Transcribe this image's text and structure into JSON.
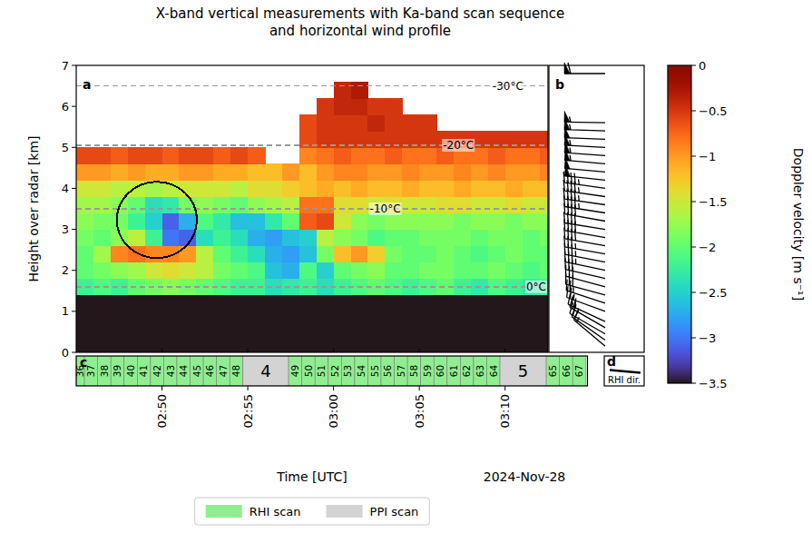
{
  "chart_data": {
    "type": "heatmap",
    "title": "X-band vertical measurements with Ka-band scan sequence\nand horizontal wind profile",
    "x_label": "Time [UTC]",
    "y_label": "Height over radar [km]",
    "date_label": "2024-Nov-28",
    "panel_labels": [
      "a",
      "b",
      "c",
      "d"
    ],
    "grid": false,
    "legend": "bottom",
    "xlim": [
      165,
      192.5
    ],
    "xticks": [
      {
        "value": 170,
        "label": "02:50"
      },
      {
        "value": 175,
        "label": "02:55"
      },
      {
        "value": 180,
        "label": "03:00"
      },
      {
        "value": 185,
        "label": "03:05"
      },
      {
        "value": 190,
        "label": "03:10"
      }
    ],
    "ylim": [
      0,
      7
    ],
    "yticks": [
      0,
      1,
      2,
      3,
      4,
      5,
      6,
      7
    ],
    "x_edges": [
      165,
      166,
      167,
      168,
      169,
      170,
      171,
      172,
      173,
      174,
      175,
      176,
      177,
      178,
      179,
      180,
      181,
      182,
      183,
      184,
      185,
      186,
      187,
      188,
      189,
      190,
      191,
      192,
      193
    ],
    "y_edges": [
      0,
      1.4,
      1.8,
      2.2,
      2.6,
      3.0,
      3.4,
      3.8,
      4.2,
      4.6,
      5.0,
      5.4,
      5.8,
      6.2,
      6.6
    ],
    "cells": [
      [
        -3.5,
        -3.5,
        -3.5,
        -3.5,
        -3.5,
        -3.5,
        -3.5,
        -3.5,
        -3.5,
        -3.5,
        -3.5,
        -3.5,
        -3.5,
        -3.5,
        -3.5,
        -3.5,
        -3.5,
        -3.5,
        -3.5,
        -3.5,
        -3.5,
        -3.5,
        -3.5,
        -3.5,
        -3.5,
        -3.5,
        -3.5,
        -3.5
      ],
      [
        -2.2,
        -2.1,
        -2.2,
        -2.0,
        -1.9,
        -1.8,
        -1.9,
        -2.0,
        -2.1,
        -2.2,
        -2.2,
        -2.4,
        -2.3,
        -2.2,
        -2.4,
        -2.2,
        -2.1,
        -2.0,
        -2.1,
        -2.2,
        -2.1,
        -2.0,
        -2.2,
        -2.3,
        -2.1,
        -2.2,
        -2.3,
        -2.2
      ],
      [
        -2.0,
        -1.9,
        -1.8,
        -1.7,
        -1.5,
        -1.4,
        -1.5,
        -1.6,
        -1.9,
        -2.0,
        -2.1,
        -2.6,
        -2.7,
        -2.1,
        -2.5,
        -2.0,
        -1.9,
        -1.8,
        -2.0,
        -2.0,
        -1.9,
        -1.9,
        -2.0,
        -2.0,
        -1.9,
        -2.0,
        -2.1,
        -2.0
      ],
      [
        -2.0,
        -1.7,
        -0.9,
        -0.8,
        -0.9,
        -0.9,
        -1.0,
        -1.6,
        -2.0,
        -2.2,
        -2.4,
        -2.7,
        -2.8,
        -2.6,
        -1.9,
        -1.2,
        -1.0,
        -1.3,
        -1.9,
        -2.0,
        -2.0,
        -1.9,
        -2.0,
        -2.1,
        -2.0,
        -1.9,
        -2.0,
        -2.0
      ],
      [
        -1.9,
        -2.0,
        -1.8,
        -1.6,
        -2.2,
        -3.0,
        -3.1,
        -2.4,
        -2.2,
        -2.4,
        -2.7,
        -2.8,
        -2.6,
        -2.5,
        -1.6,
        -1.8,
        -1.9,
        -2.1,
        -2.0,
        -2.0,
        -1.9,
        -1.9,
        -1.9,
        -2.0,
        -1.9,
        -1.9,
        -2.0,
        -1.9
      ],
      [
        -1.8,
        -1.9,
        -1.9,
        -2.2,
        -2.5,
        -3.1,
        -2.7,
        -2.1,
        -2.3,
        -2.6,
        -2.6,
        -2.3,
        -2.0,
        -0.7,
        -0.6,
        -1.5,
        -1.8,
        -1.9,
        -1.8,
        -1.8,
        -1.8,
        -1.8,
        -1.9,
        -1.8,
        -1.8,
        -1.9,
        -1.8,
        -1.8
      ],
      [
        -1.7,
        -1.7,
        -1.8,
        -2.0,
        -2.4,
        -2.3,
        -1.9,
        -1.8,
        -1.9,
        -2.0,
        -1.8,
        -1.7,
        -1.6,
        -0.8,
        -0.8,
        -1.4,
        -1.4,
        -1.5,
        -1.4,
        -1.5,
        -1.5,
        -1.4,
        -1.4,
        -1.5,
        -1.5,
        -1.4,
        -1.5,
        -1.5
      ],
      [
        -1.5,
        -1.5,
        -1.6,
        -1.6,
        -1.7,
        -1.6,
        -1.5,
        -1.5,
        -1.5,
        -1.6,
        -1.4,
        -1.4,
        -1.3,
        -1.2,
        -1.1,
        -1.2,
        -1.1,
        -1.2,
        -1.2,
        -1.1,
        -1.2,
        -1.2,
        -1.1,
        -1.2,
        -1.2,
        -1.1,
        -1.2,
        -1.2
      ],
      [
        -1.0,
        -1.0,
        -1.1,
        -1.0,
        -1.1,
        -1.1,
        -1.0,
        -1.0,
        -1.1,
        -1.1,
        -1.2,
        -1.2,
        -1.0,
        -1.2,
        -1.0,
        -0.9,
        -0.9,
        -1.0,
        -1.0,
        -0.9,
        -1.0,
        -1.0,
        -0.9,
        -1.0,
        -0.9,
        -1.0,
        -1.0,
        -0.9
      ],
      [
        -0.6,
        -0.6,
        -0.7,
        -0.6,
        -0.6,
        -0.7,
        -0.6,
        -0.6,
        -0.7,
        -0.6,
        -0.7,
        null,
        null,
        -0.9,
        -0.8,
        -0.7,
        -0.8,
        -0.8,
        -0.7,
        -0.8,
        -0.8,
        -0.7,
        -0.8,
        -0.8,
        -0.7,
        -0.8,
        -0.8,
        -0.7
      ],
      [
        null,
        null,
        null,
        null,
        null,
        null,
        null,
        null,
        null,
        null,
        null,
        null,
        null,
        -0.6,
        -0.5,
        -0.5,
        -0.5,
        -0.5,
        -0.5,
        -0.5,
        -0.5,
        -0.5,
        -0.5,
        -0.5,
        -0.5,
        -0.5,
        -0.5,
        -0.5
      ],
      [
        null,
        null,
        null,
        null,
        null,
        null,
        null,
        null,
        null,
        null,
        null,
        null,
        null,
        -0.6,
        -0.5,
        -0.5,
        -0.5,
        -0.4,
        -0.5,
        -0.5,
        -0.5,
        null,
        null,
        null,
        null,
        null,
        null,
        null
      ],
      [
        null,
        null,
        null,
        null,
        null,
        null,
        null,
        null,
        null,
        null,
        null,
        null,
        null,
        null,
        -0.5,
        -0.4,
        -0.4,
        -0.5,
        -0.5,
        null,
        null,
        null,
        null,
        null,
        null,
        null,
        null,
        null
      ],
      [
        null,
        null,
        null,
        null,
        null,
        null,
        null,
        null,
        null,
        null,
        null,
        null,
        null,
        null,
        null,
        -0.4,
        -0.3,
        null,
        null,
        null,
        null,
        null,
        null,
        null,
        null,
        null,
        null,
        null
      ]
    ],
    "colorbar": {
      "label": "Doppler velocity [m s⁻¹]",
      "range": [
        -3.5,
        0
      ],
      "ticks": [
        0,
        {
          "value": -0.5,
          "label": "−0.5"
        },
        {
          "value": -1,
          "label": "−1"
        },
        {
          "value": -1.5,
          "label": "−1.5"
        },
        {
          "value": -2,
          "label": "−2"
        },
        {
          "value": -2.5,
          "label": "−2.5"
        },
        {
          "value": -3,
          "label": "−3"
        },
        {
          "value": -3.5,
          "label": "−3.5"
        }
      ]
    },
    "isotherms": [
      {
        "value": 6.5,
        "label": "-30°C"
      },
      {
        "value": 5.05,
        "label": "-20°C"
      },
      {
        "value": 3.5,
        "label": "-10°C"
      },
      {
        "value": 1.6,
        "label": "0°C"
      }
    ],
    "circle": {
      "x": 169.7,
      "y": 3.23,
      "rx": 2.33,
      "ry": 0.93
    },
    "wind_profile": {
      "heights": [
        0.15,
        0.3,
        0.45,
        0.6,
        0.75,
        1.0,
        1.2,
        1.4,
        1.6,
        1.8,
        2.0,
        2.2,
        2.4,
        2.6,
        2.8,
        3.0,
        3.2,
        3.4,
        3.6,
        3.8,
        4.0,
        4.2,
        4.4,
        4.6,
        4.8,
        5.0,
        5.2,
        5.4,
        5.6,
        6.8
      ],
      "speeds": [
        15,
        20,
        20,
        20,
        25,
        25,
        25,
        30,
        30,
        30,
        35,
        35,
        35,
        40,
        40,
        40,
        40,
        45,
        45,
        45,
        45,
        50,
        50,
        55,
        55,
        55,
        50,
        55,
        55,
        60
      ],
      "directions": [
        310,
        305,
        300,
        300,
        295,
        290,
        288,
        285,
        285,
        283,
        282,
        281,
        280,
        280,
        280,
        279,
        280,
        279,
        278,
        278,
        278,
        276,
        275,
        275,
        274,
        273,
        272,
        272,
        271,
        270
      ]
    },
    "rhi_direction": 95,
    "rhi_label": "RHI dir.",
    "scan_xlim": [
      165,
      194.8
    ],
    "scan_types": [
      {
        "name": "RHI scan",
        "color": "#90ee90"
      },
      {
        "name": "PPI scan",
        "color": "#d3d3d3"
      }
    ],
    "scans": [
      {
        "label": "36",
        "kind": "RHI scan",
        "start": 165,
        "end": 165.48
      },
      {
        "label": "37",
        "kind": "RHI scan",
        "start": 165.48,
        "end": 166.25
      },
      {
        "label": "38",
        "kind": "RHI scan",
        "start": 166.25,
        "end": 167.02
      },
      {
        "label": "39",
        "kind": "RHI scan",
        "start": 167.02,
        "end": 167.79
      },
      {
        "label": "40",
        "kind": "RHI scan",
        "start": 167.79,
        "end": 168.56
      },
      {
        "label": "41",
        "kind": "RHI scan",
        "start": 168.56,
        "end": 169.33
      },
      {
        "label": "42",
        "kind": "RHI scan",
        "start": 169.33,
        "end": 170.1
      },
      {
        "label": "43",
        "kind": "RHI scan",
        "start": 170.1,
        "end": 170.87
      },
      {
        "label": "44",
        "kind": "RHI scan",
        "start": 170.87,
        "end": 171.64
      },
      {
        "label": "45",
        "kind": "RHI scan",
        "start": 171.64,
        "end": 172.41
      },
      {
        "label": "46",
        "kind": "RHI scan",
        "start": 172.41,
        "end": 173.18
      },
      {
        "label": "47",
        "kind": "RHI scan",
        "start": 173.18,
        "end": 173.95
      },
      {
        "label": "48",
        "kind": "RHI scan",
        "start": 173.95,
        "end": 174.72
      },
      {
        "label": "4",
        "kind": "PPI scan",
        "start": 174.72,
        "end": 177.38
      },
      {
        "label": "49",
        "kind": "RHI scan",
        "start": 177.38,
        "end": 178.15
      },
      {
        "label": "50",
        "kind": "RHI scan",
        "start": 178.15,
        "end": 178.92
      },
      {
        "label": "51",
        "kind": "RHI scan",
        "start": 178.92,
        "end": 179.69
      },
      {
        "label": "52",
        "kind": "RHI scan",
        "start": 179.69,
        "end": 180.46
      },
      {
        "label": "53",
        "kind": "RHI scan",
        "start": 180.46,
        "end": 181.23
      },
      {
        "label": "54",
        "kind": "RHI scan",
        "start": 181.23,
        "end": 182.0
      },
      {
        "label": "55",
        "kind": "RHI scan",
        "start": 182.0,
        "end": 182.77
      },
      {
        "label": "56",
        "kind": "RHI scan",
        "start": 182.77,
        "end": 183.54
      },
      {
        "label": "57",
        "kind": "RHI scan",
        "start": 183.54,
        "end": 184.31
      },
      {
        "label": "58",
        "kind": "RHI scan",
        "start": 184.31,
        "end": 185.08
      },
      {
        "label": "59",
        "kind": "RHI scan",
        "start": 185.08,
        "end": 185.85
      },
      {
        "label": "60",
        "kind": "RHI scan",
        "start": 185.85,
        "end": 186.62
      },
      {
        "label": "61",
        "kind": "RHI scan",
        "start": 186.62,
        "end": 187.39
      },
      {
        "label": "62",
        "kind": "RHI scan",
        "start": 187.39,
        "end": 188.16
      },
      {
        "label": "63",
        "kind": "RHI scan",
        "start": 188.16,
        "end": 188.93
      },
      {
        "label": "64",
        "kind": "RHI scan",
        "start": 188.93,
        "end": 189.7
      },
      {
        "label": "5",
        "kind": "PPI scan",
        "start": 189.7,
        "end": 192.4
      },
      {
        "label": "65",
        "kind": "RHI scan",
        "start": 192.4,
        "end": 193.17
      },
      {
        "label": "66",
        "kind": "RHI scan",
        "start": 193.17,
        "end": 193.94
      },
      {
        "label": "67",
        "kind": "RHI scan",
        "start": 193.94,
        "end": 194.71
      }
    ]
  }
}
